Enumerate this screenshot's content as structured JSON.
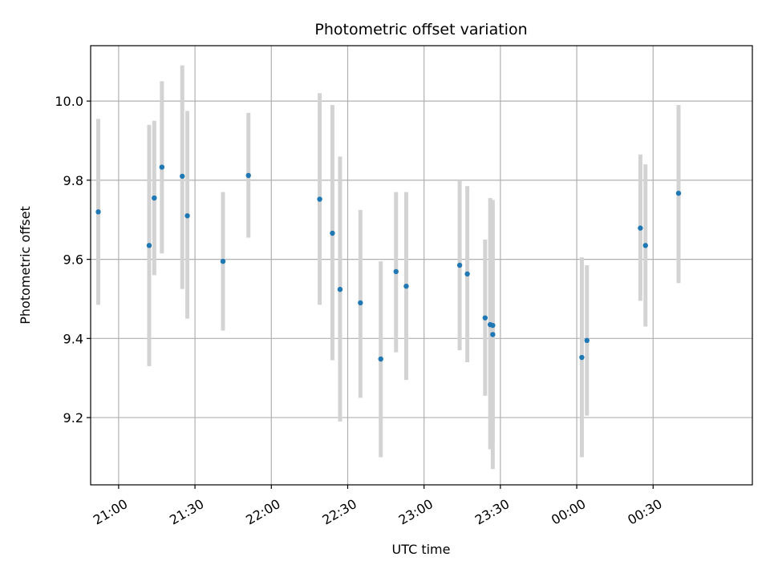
{
  "chart_data": {
    "type": "scatter",
    "title": "Photometric offset variation",
    "xlabel": "UTC time",
    "ylabel": "Photometric offset",
    "grid": true,
    "x_ticks": [
      "21:00",
      "21:30",
      "22:00",
      "22:30",
      "23:00",
      "23:30",
      "00:00",
      "00:30"
    ],
    "y_ticks": [
      "9.2",
      "9.4",
      "9.6",
      "9.8",
      "10.0"
    ],
    "x_unit": "UTC time (HH:MM)",
    "xlim": [
      "20:49",
      "01:09"
    ],
    "ylim": [
      9.03,
      10.14
    ],
    "marker_color": "#1f77b4",
    "errorbar_color": "#d3d3d3",
    "series": [
      {
        "points": [
          {
            "x": "20:52",
            "y": 9.72,
            "yerr_low": 9.485,
            "yerr_high": 9.955
          },
          {
            "x": "21:12",
            "y": 9.635,
            "yerr_low": 9.33,
            "yerr_high": 9.94
          },
          {
            "x": "21:14",
            "y": 9.755,
            "yerr_low": 9.56,
            "yerr_high": 9.95
          },
          {
            "x": "21:17",
            "y": 9.833,
            "yerr_low": 9.615,
            "yerr_high": 10.05
          },
          {
            "x": "21:25",
            "y": 9.81,
            "yerr_low": 9.525,
            "yerr_high": 10.09
          },
          {
            "x": "21:27",
            "y": 9.71,
            "yerr_low": 9.45,
            "yerr_high": 9.975
          },
          {
            "x": "21:41",
            "y": 9.595,
            "yerr_low": 9.42,
            "yerr_high": 9.77
          },
          {
            "x": "21:51",
            "y": 9.812,
            "yerr_low": 9.655,
            "yerr_high": 9.97
          },
          {
            "x": "22:19",
            "y": 9.752,
            "yerr_low": 9.485,
            "yerr_high": 10.02
          },
          {
            "x": "22:24",
            "y": 9.666,
            "yerr_low": 9.345,
            "yerr_high": 9.99
          },
          {
            "x": "22:27",
            "y": 9.524,
            "yerr_low": 9.19,
            "yerr_high": 9.86
          },
          {
            "x": "22:35",
            "y": 9.49,
            "yerr_low": 9.25,
            "yerr_high": 9.725
          },
          {
            "x": "22:43",
            "y": 9.348,
            "yerr_low": 9.1,
            "yerr_high": 9.595
          },
          {
            "x": "22:49",
            "y": 9.569,
            "yerr_low": 9.365,
            "yerr_high": 9.77
          },
          {
            "x": "22:53",
            "y": 9.532,
            "yerr_low": 9.295,
            "yerr_high": 9.77
          },
          {
            "x": "23:14",
            "y": 9.585,
            "yerr_low": 9.37,
            "yerr_high": 9.8
          },
          {
            "x": "23:17",
            "y": 9.563,
            "yerr_low": 9.34,
            "yerr_high": 9.785
          },
          {
            "x": "23:24",
            "y": 9.452,
            "yerr_low": 9.255,
            "yerr_high": 9.65
          },
          {
            "x": "23:26",
            "y": 9.435,
            "yerr_low": 9.12,
            "yerr_high": 9.755
          },
          {
            "x": "23:27",
            "y": 9.41,
            "yerr_low": 9.07,
            "yerr_high": 9.75
          },
          {
            "x": "23:27",
            "y": 9.433,
            "yerr_low": 9.14,
            "yerr_high": 9.725
          },
          {
            "x": "00:02",
            "y": 9.352,
            "yerr_low": 9.1,
            "yerr_high": 9.605
          },
          {
            "x": "00:04",
            "y": 9.395,
            "yerr_low": 9.205,
            "yerr_high": 9.585
          },
          {
            "x": "00:25",
            "y": 9.679,
            "yerr_low": 9.495,
            "yerr_high": 9.865
          },
          {
            "x": "00:27",
            "y": 9.635,
            "yerr_low": 9.43,
            "yerr_high": 9.84
          },
          {
            "x": "00:40",
            "y": 9.767,
            "yerr_low": 9.54,
            "yerr_high": 9.99
          }
        ]
      }
    ]
  }
}
